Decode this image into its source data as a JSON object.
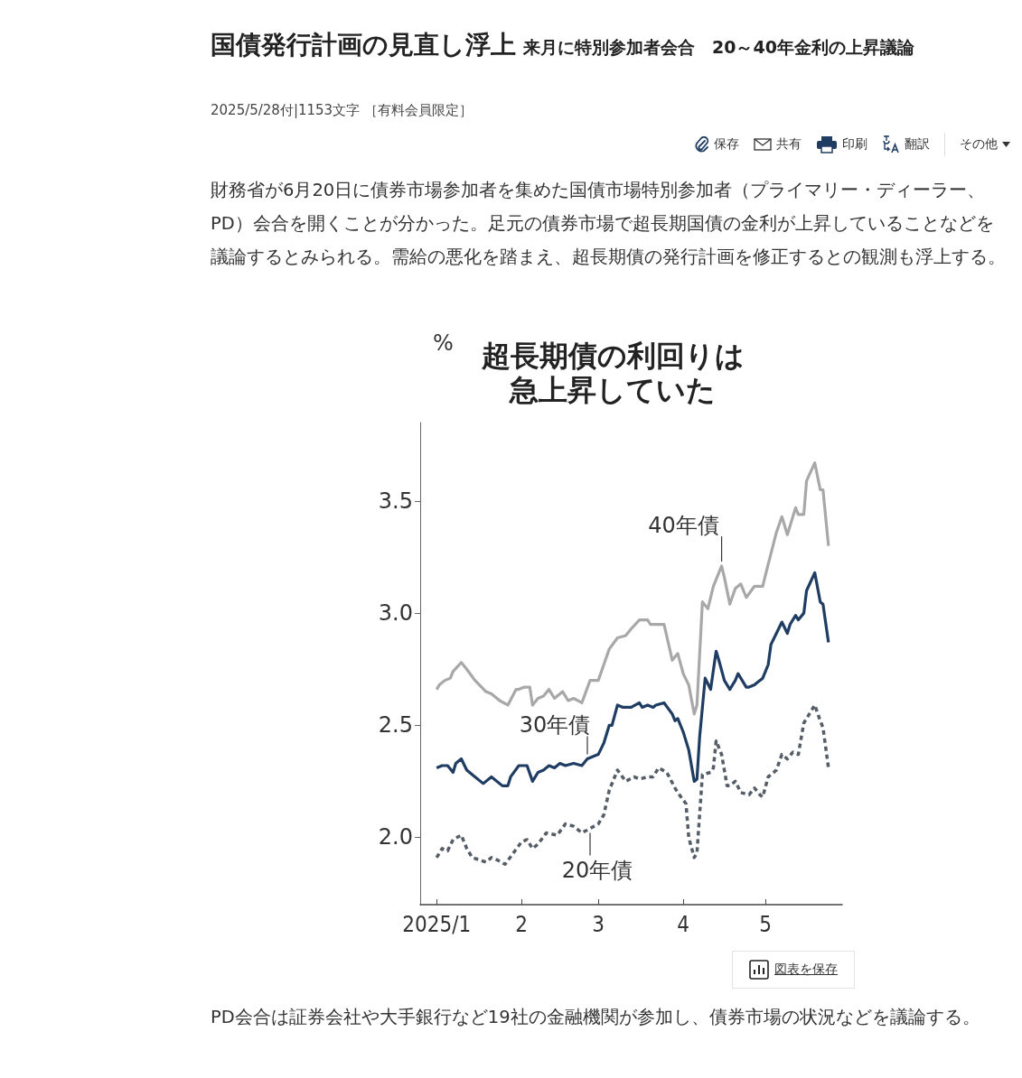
{
  "chart_data": {
    "type": "line",
    "title": "超長期債の利回りは急上昇していた",
    "ylabel": "%",
    "xlim": [
      "2024-12-26",
      "2025-05-29"
    ],
    "xticks": [
      {
        "value": "2025-01-01",
        "label": "2025/1"
      },
      {
        "value": "2025-02-01",
        "label": "2"
      },
      {
        "value": "2025-03-01",
        "label": "3"
      },
      {
        "value": "2025-04-01",
        "label": "4"
      },
      {
        "value": "2025-05-01",
        "label": "5"
      }
    ],
    "ylim": [
      1.7,
      3.85
    ],
    "yticks": [
      {
        "value": 2,
        "label": "2.0"
      },
      {
        "value": 2.5,
        "label": "2.5"
      },
      {
        "value": 3,
        "label": "3.0"
      },
      {
        "value": 3.5,
        "label": "3.5"
      }
    ],
    "grid": false,
    "marker": "none",
    "series": [
      {
        "name": "40年債",
        "color": "#a8a8a8",
        "line_style": "solid",
        "x": [
          "2025-01-01",
          "2025-01-02",
          "2025-01-04",
          "2025-01-06",
          "2025-01-07",
          "2025-01-10",
          "2025-01-12",
          "2025-01-15",
          "2025-01-19",
          "2025-01-21",
          "2025-01-24",
          "2025-01-27",
          "2025-01-30",
          "2025-01-31",
          "2025-02-02",
          "2025-02-04",
          "2025-02-05",
          "2025-02-07",
          "2025-02-09",
          "2025-02-11",
          "2025-02-13",
          "2025-02-16",
          "2025-02-18",
          "2025-02-20",
          "2025-02-23",
          "2025-02-26",
          "2025-03-01",
          "2025-03-03",
          "2025-03-05",
          "2025-03-08",
          "2025-03-11",
          "2025-03-13",
          "2025-03-16",
          "2025-03-19",
          "2025-03-20",
          "2025-03-25",
          "2025-03-28",
          "2025-03-30",
          "2025-04-01",
          "2025-04-03",
          "2025-04-05",
          "2025-04-06",
          "2025-04-08",
          "2025-04-10",
          "2025-04-12",
          "2025-04-15",
          "2025-04-16",
          "2025-04-18",
          "2025-04-20",
          "2025-04-22",
          "2025-04-24",
          "2025-04-27",
          "2025-04-30",
          "2025-05-01",
          "2025-05-05",
          "2025-05-07",
          "2025-05-09",
          "2025-05-12",
          "2025-05-13",
          "2025-05-15",
          "2025-05-16",
          "2025-05-19",
          "2025-05-21",
          "2025-05-22",
          "2025-05-24"
        ],
        "values": [
          2.66,
          2.68,
          2.7,
          2.71,
          2.74,
          2.78,
          2.75,
          2.7,
          2.65,
          2.64,
          2.61,
          2.59,
          2.66,
          2.66,
          2.67,
          2.67,
          2.59,
          2.62,
          2.63,
          2.66,
          2.62,
          2.65,
          2.61,
          2.62,
          2.6,
          2.7,
          2.7,
          2.77,
          2.84,
          2.89,
          2.9,
          2.93,
          2.97,
          2.97,
          2.95,
          2.95,
          2.79,
          2.82,
          2.73,
          2.68,
          2.55,
          2.59,
          3.05,
          3.02,
          3.12,
          3.21,
          3.16,
          3.04,
          3.11,
          3.13,
          3.07,
          3.12,
          3.12,
          3.17,
          3.36,
          3.43,
          3.35,
          3.47,
          3.44,
          3.44,
          3.59,
          3.67,
          3.55,
          3.55,
          3.3
        ]
      },
      {
        "name": "30年債",
        "color": "#1f3d63",
        "line_style": "solid",
        "x": [
          "2025-01-01",
          "2025-01-03",
          "2025-01-05",
          "2025-01-07",
          "2025-01-08",
          "2025-01-10",
          "2025-01-12",
          "2025-01-14",
          "2025-01-18",
          "2025-01-21",
          "2025-01-25",
          "2025-01-27",
          "2025-01-28",
          "2025-01-31",
          "2025-02-03",
          "2025-02-05",
          "2025-02-07",
          "2025-02-09",
          "2025-02-11",
          "2025-02-13",
          "2025-02-15",
          "2025-02-17",
          "2025-02-20",
          "2025-02-23",
          "2025-02-25",
          "2025-02-27",
          "2025-03-01",
          "2025-03-03",
          "2025-03-05",
          "2025-03-06",
          "2025-03-08",
          "2025-03-10",
          "2025-03-13",
          "2025-03-16",
          "2025-03-17",
          "2025-03-19",
          "2025-03-21",
          "2025-03-22",
          "2025-03-25",
          "2025-03-28",
          "2025-03-29",
          "2025-03-30",
          "2025-04-01",
          "2025-04-03",
          "2025-04-05",
          "2025-04-06",
          "2025-04-07",
          "2025-04-09",
          "2025-04-11",
          "2025-04-13",
          "2025-04-14",
          "2025-04-16",
          "2025-04-18",
          "2025-04-20",
          "2025-04-21",
          "2025-04-22",
          "2025-04-24",
          "2025-04-25",
          "2025-04-27",
          "2025-04-28",
          "2025-04-30",
          "2025-05-02",
          "2025-05-03",
          "2025-05-05",
          "2025-05-07",
          "2025-05-09",
          "2025-05-10",
          "2025-05-12",
          "2025-05-13",
          "2025-05-15",
          "2025-05-16",
          "2025-05-19",
          "2025-05-21",
          "2025-05-22",
          "2025-05-24"
        ],
        "values": [
          2.31,
          2.32,
          2.32,
          2.29,
          2.33,
          2.35,
          2.3,
          2.28,
          2.24,
          2.27,
          2.23,
          2.23,
          2.27,
          2.32,
          2.32,
          2.25,
          2.29,
          2.3,
          2.32,
          2.31,
          2.33,
          2.32,
          2.33,
          2.32,
          2.35,
          2.36,
          2.37,
          2.42,
          2.5,
          2.5,
          2.59,
          2.58,
          2.58,
          2.6,
          2.58,
          2.59,
          2.58,
          2.59,
          2.6,
          2.55,
          2.52,
          2.53,
          2.47,
          2.39,
          2.25,
          2.26,
          2.45,
          2.71,
          2.66,
          2.83,
          2.79,
          2.7,
          2.66,
          2.7,
          2.73,
          2.71,
          2.67,
          2.67,
          2.68,
          2.69,
          2.71,
          2.77,
          2.86,
          2.91,
          2.96,
          2.91,
          2.95,
          2.99,
          2.97,
          3.0,
          3.1,
          3.18,
          3.05,
          3.04,
          2.87
        ]
      },
      {
        "name": "20年債",
        "color": "#555d66",
        "line_style": "dashed",
        "x": [
          "2025-01-01",
          "2025-01-03",
          "2025-01-05",
          "2025-01-07",
          "2025-01-10",
          "2025-01-12",
          "2025-01-14",
          "2025-01-19",
          "2025-01-21",
          "2025-01-23",
          "2025-01-26",
          "2025-01-29",
          "2025-02-01",
          "2025-02-03",
          "2025-02-05",
          "2025-02-07",
          "2025-02-10",
          "2025-02-14",
          "2025-02-17",
          "2025-02-20",
          "2025-02-23",
          "2025-02-26",
          "2025-03-01",
          "2025-03-03",
          "2025-03-05",
          "2025-03-08",
          "2025-03-11",
          "2025-03-14",
          "2025-03-16",
          "2025-03-19",
          "2025-03-21",
          "2025-03-23",
          "2025-03-26",
          "2025-03-29",
          "2025-03-30",
          "2025-04-02",
          "2025-04-03",
          "2025-04-05",
          "2025-04-06",
          "2025-04-08",
          "2025-04-11",
          "2025-04-12",
          "2025-04-13",
          "2025-04-15",
          "2025-04-17",
          "2025-04-18",
          "2025-04-20",
          "2025-04-22",
          "2025-04-25",
          "2025-04-27",
          "2025-04-29",
          "2025-04-30",
          "2025-05-02",
          "2025-05-05",
          "2025-05-07",
          "2025-05-09",
          "2025-05-11",
          "2025-05-13",
          "2025-05-15",
          "2025-05-19",
          "2025-05-21",
          "2025-05-22",
          "2025-05-24"
        ],
        "values": [
          1.91,
          1.95,
          1.94,
          1.99,
          2.01,
          1.95,
          1.91,
          1.89,
          1.91,
          1.9,
          1.88,
          1.93,
          1.98,
          1.99,
          1.95,
          1.97,
          2.02,
          2.01,
          2.06,
          2.05,
          2.02,
          2.04,
          2.06,
          2.1,
          2.21,
          2.3,
          2.25,
          2.27,
          2.26,
          2.27,
          2.27,
          2.31,
          2.29,
          2.22,
          2.2,
          2.15,
          2.0,
          1.91,
          1.93,
          2.28,
          2.29,
          2.31,
          2.43,
          2.37,
          2.23,
          2.23,
          2.25,
          2.2,
          2.19,
          2.22,
          2.19,
          2.18,
          2.27,
          2.3,
          2.37,
          2.35,
          2.38,
          2.37,
          2.51,
          2.59,
          2.52,
          2.49,
          2.31
        ]
      }
    ],
    "annotations": [
      "国債発行計画の見直し浮上",
      "来月に特別参加者会合　20～40年金利の上昇議論",
      "2025/5/28付|1153文字 ［有料会員限定］",
      "保存",
      "共有",
      "印刷",
      "翻訳",
      "その他",
      "財務省が6月20日に債券市場参加者を集めた国債市場特別参加者（プライマリー・ディーラー、PD）会合を開くことが分かった。足元の債券市場で超長期国債の金利が上昇していることなどを議論するとみられる。需給の悪化を踏まえ、超長期債の発行計画を修正するとの観測も浮上する。",
      "図表を保存",
      "PD会合は証券会社や大手銀行など19社の金融機関が参加し、債券市場の状況などを議論する。"
    ]
  }
}
